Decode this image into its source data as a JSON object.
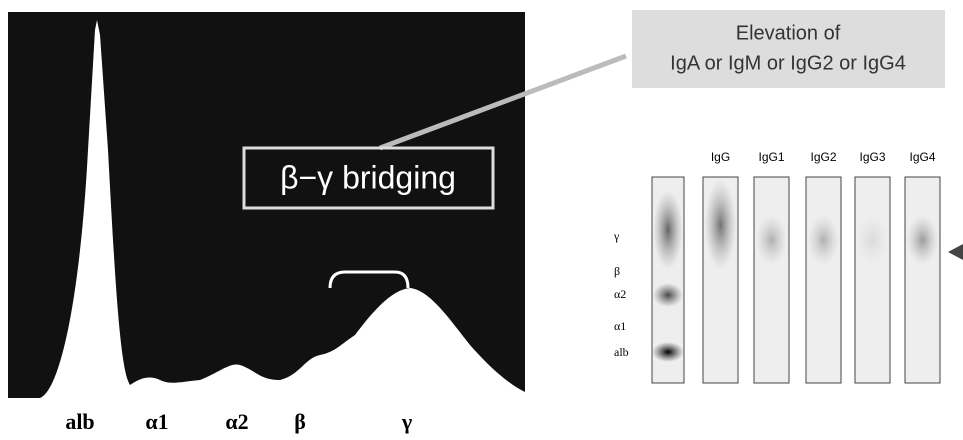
{
  "figure": {
    "callout": {
      "line1": "Elevation of",
      "line2": "IgA or IgM or IgG2 or IgG4"
    },
    "bridging_label": "β−γ bridging",
    "fractions": [
      "alb",
      "α1",
      "α2",
      "β",
      "γ"
    ],
    "gel": {
      "lane_headers": [
        "IgG",
        "IgG1",
        "IgG2",
        "IgG3",
        "IgG4"
      ],
      "band_labels": [
        "γ",
        "β",
        "α2",
        "α1",
        "alb"
      ]
    }
  }
}
